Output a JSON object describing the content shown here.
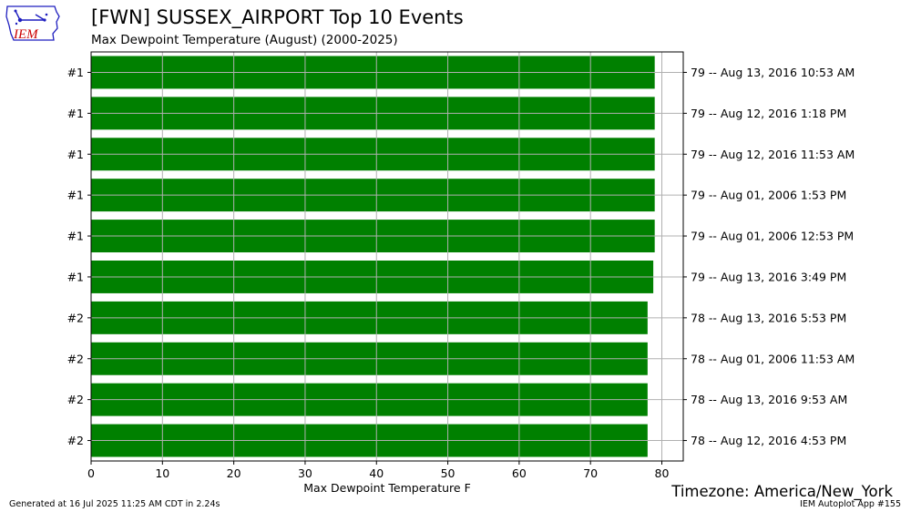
{
  "header": {
    "title": "[FWN] SUSSEX_AIRPORT Top 10 Events",
    "subtitle": "Max Dewpoint Temperature  (August) (2000-2025)"
  },
  "logo": {
    "text": "IEM",
    "icon": "iem-iowa-logo"
  },
  "timezone": "Timezone: America/New_York",
  "footer": {
    "generated": "Generated at 16 Jul 2025 11:25 AM CDT in 2.24s",
    "app": "IEM Autoplot App #155"
  },
  "colors": {
    "bar": "#008000",
    "grid": "#b0b0b0",
    "logo_red": "#cc0000",
    "logo_blue": "#1f1fbf"
  },
  "chart_data": {
    "type": "bar",
    "orientation": "horizontal",
    "categories": [
      "#1",
      "#1",
      "#1",
      "#1",
      "#1",
      "#1",
      "#2",
      "#2",
      "#2",
      "#2"
    ],
    "values": [
      79,
      79,
      79,
      79,
      79,
      78.8,
      78,
      78,
      78,
      78
    ],
    "right_labels": [
      "79 -- Aug 13, 2016 10:53 AM",
      "79 -- Aug 12, 2016 1:18 PM",
      "79 -- Aug 12, 2016 11:53 AM",
      "79 -- Aug 01, 2006 1:53 PM",
      "79 -- Aug 01, 2006 12:53 PM",
      "79 -- Aug 13, 2016 3:49 PM",
      "78 -- Aug 13, 2016 5:53 PM",
      "78 -- Aug 01, 2006 11:53 AM",
      "78 -- Aug 13, 2016 9:53 AM",
      "78 -- Aug 12, 2016 4:53 PM"
    ],
    "xlabel": "Max Dewpoint Temperature F",
    "ylabel": "",
    "xlim": [
      0,
      83
    ],
    "xticks": [
      0,
      10,
      20,
      30,
      40,
      50,
      60,
      70,
      80
    ],
    "grid": true
  }
}
